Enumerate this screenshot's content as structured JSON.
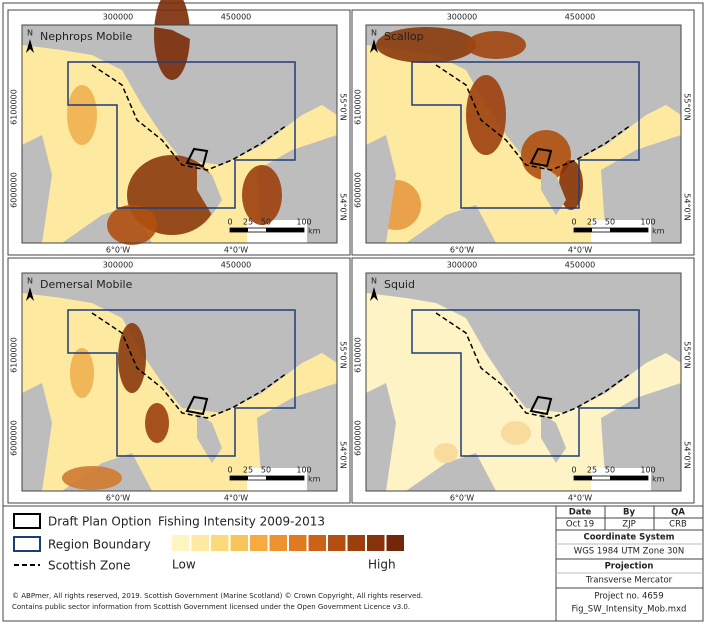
{
  "panels": [
    {
      "title": "Nephrops Mobile",
      "north": "N",
      "x_ticks": [
        "300000",
        "450000"
      ],
      "y_ticks": [
        "6100000",
        "6000000"
      ],
      "lon_labels": [
        "6°0'W",
        "4°0'W"
      ],
      "lat_labels": [
        "55°0'N",
        "54°0'N"
      ],
      "scale_bar": [
        "0",
        "25",
        "50",
        "100",
        "km"
      ]
    },
    {
      "title": "Scallop",
      "north": "N",
      "x_ticks": [
        "300000",
        "450000"
      ],
      "y_ticks": [
        "6100000",
        "6000000"
      ],
      "lon_labels": [
        "6°0'W",
        "4°0'W"
      ],
      "lat_labels": [
        "55°0'N",
        "54°0'N"
      ],
      "scale_bar": [
        "0",
        "25",
        "50",
        "100",
        "km"
      ]
    },
    {
      "title": "Demersal Mobile",
      "north": "N",
      "x_ticks": [
        "300000",
        "450000"
      ],
      "y_ticks": [
        "6100000",
        "6000000"
      ],
      "lon_labels": [
        "6°0'W",
        "4°0'W"
      ],
      "lat_labels": [
        "55°0'N",
        "54°0'N"
      ],
      "scale_bar": [
        "0",
        "25",
        "50",
        "100",
        "km"
      ]
    },
    {
      "title": "Squid",
      "north": "N",
      "x_ticks": [
        "300000",
        "450000"
      ],
      "y_ticks": [
        "6100000",
        "6000000"
      ],
      "lon_labels": [
        "6°0'W",
        "4°0'W"
      ],
      "lat_labels": [
        "55°0'N",
        "54°0'N"
      ],
      "scale_bar": [
        "0",
        "25",
        "50",
        "100",
        "km"
      ]
    }
  ],
  "legend": {
    "draft_plan": "Draft Plan Option",
    "region_boundary": "Region Boundary",
    "scottish_zone": "Scottish Zone",
    "intensity_title": "Fishing Intensity 2009-2013",
    "low": "Low",
    "high": "High"
  },
  "info_table": {
    "headers": [
      "Date",
      "By",
      "QA"
    ],
    "values": [
      "Oct 19",
      "ZJP",
      "CRB"
    ],
    "coordinate_title": "Coordinate System",
    "coordinate_value": "WGS 1984 UTM Zone 30N",
    "projection_title": "Projection",
    "projection_value": "Transverse Mercator",
    "project_no": "Project no. 4659",
    "file_name": "Fig_SW_Intensity_Mob.mxd"
  },
  "copyright": [
    "© ABPmer, All rights reserved, 2019. Scottish Government (Marine Scotland) © Crown Copyright, All rights reserved.",
    "Contains public sector information from Scottish Government  licensed under the Open Government Licence v3.0."
  ]
}
